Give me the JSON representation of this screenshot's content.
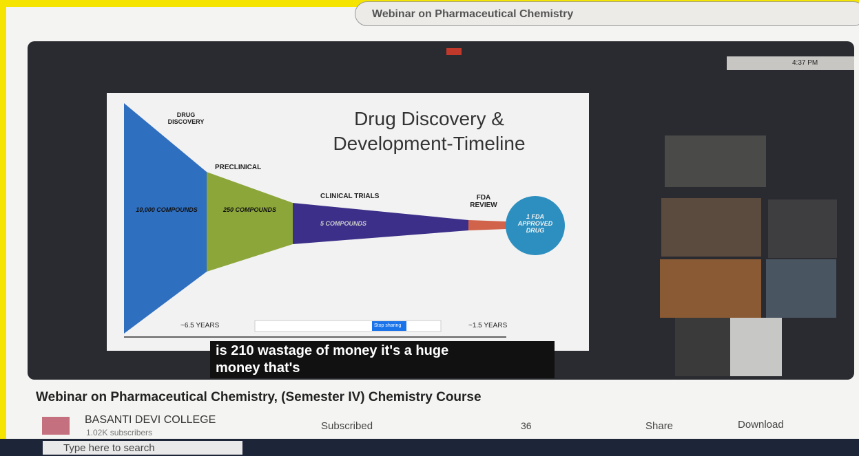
{
  "header": {
    "search": "Webinar on Pharmaceutical Chemistry"
  },
  "video": {
    "slide": {
      "title_lines": [
        "Drug Discovery &",
        "Development-Timeline"
      ],
      "stages": [
        "DRUG DISCOVERY",
        "PRECLINICAL",
        "CLINICAL TRIALS",
        "FDA REVIEW"
      ],
      "compounds": [
        "10,000 COMPOUNDS",
        "250 COMPOUNDS",
        "5 COMPOUNDS",
        "1 FDA APPROVED DRUG"
      ],
      "durations": [
        "~6.5 YEARS",
        "~1.5 YEARS"
      ],
      "share_button": "Stop sharing"
    },
    "caption_lines": [
      "is 210 wastage of money it's a huge",
      "money that's"
    ],
    "clock": "4:37 PM"
  },
  "title": "Webinar on Pharmaceutical Chemistry, (Semester IV) Chemistry Course",
  "channel": {
    "name": "BASANTI DEVI COLLEGE",
    "subscribers": "1.02K subscribers"
  },
  "actions": {
    "subscribe": "Subscribed",
    "likes": "36",
    "share": "Share",
    "download": "Download"
  },
  "taskbar": {
    "search": "Type here to search"
  }
}
